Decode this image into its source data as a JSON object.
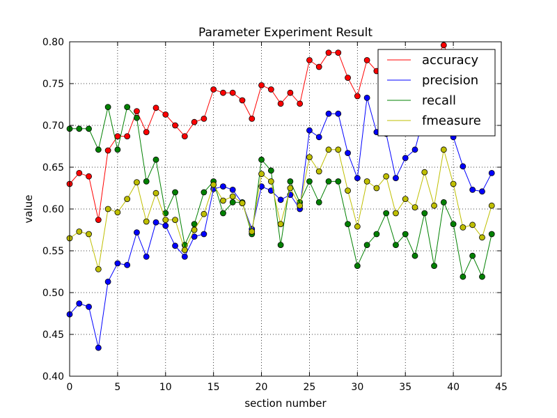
{
  "chart_data": {
    "type": "line",
    "title": "Parameter Experiment Result",
    "xlabel": "section number",
    "ylabel": "value",
    "xlim": [
      0,
      45
    ],
    "ylim": [
      0.4,
      0.8
    ],
    "xticks": [
      0,
      5,
      10,
      15,
      20,
      25,
      30,
      35,
      40,
      45
    ],
    "xtick_labels": [
      "0",
      "5",
      "10",
      "15",
      "20",
      "25",
      "30",
      "35",
      "40",
      "45"
    ],
    "yticks": [
      0.4,
      0.45,
      0.5,
      0.55,
      0.6,
      0.65,
      0.7,
      0.75,
      0.8
    ],
    "ytick_labels": [
      "0.40",
      "0.45",
      "0.50",
      "0.55",
      "0.60",
      "0.65",
      "0.70",
      "0.75",
      "0.80"
    ],
    "grid": true,
    "legend_position": "top-right",
    "x": [
      0,
      1,
      2,
      3,
      4,
      5,
      6,
      7,
      8,
      9,
      10,
      11,
      12,
      13,
      14,
      15,
      16,
      17,
      18,
      19,
      20,
      21,
      22,
      23,
      24,
      25,
      26,
      27,
      28,
      29,
      30,
      31,
      32,
      33,
      34,
      35,
      36,
      37,
      38,
      39,
      40,
      41,
      42,
      43,
      44
    ],
    "series": [
      {
        "name": "accuracy",
        "color": "#ff0000",
        "values": [
          0.63,
          0.643,
          0.639,
          0.587,
          0.67,
          0.687,
          0.687,
          0.717,
          0.692,
          0.721,
          0.713,
          0.7,
          0.687,
          0.704,
          0.708,
          0.743,
          0.739,
          0.739,
          0.73,
          0.708,
          0.748,
          0.743,
          0.726,
          0.739,
          0.726,
          0.778,
          0.77,
          0.787,
          0.787,
          0.757,
          0.735,
          0.778,
          0.765,
          0.765,
          0.77,
          0.757,
          0.761,
          0.77,
          0.778,
          0.796,
          0.77,
          0.761,
          0.748,
          0.735,
          0.761
        ]
      },
      {
        "name": "precision",
        "color": "#0000ff",
        "values": [
          0.474,
          0.487,
          0.483,
          0.434,
          0.513,
          0.535,
          0.533,
          0.572,
          0.543,
          0.584,
          0.58,
          0.556,
          0.543,
          0.567,
          0.57,
          0.624,
          0.627,
          0.623,
          0.607,
          0.576,
          0.627,
          0.622,
          0.611,
          0.617,
          0.6,
          0.694,
          0.686,
          0.714,
          0.714,
          0.667,
          0.637,
          0.733,
          0.692,
          0.69,
          0.637,
          0.661,
          0.671,
          0.714,
          0.737,
          0.735,
          0.686,
          0.651,
          0.623,
          0.621,
          0.643
        ]
      },
      {
        "name": "recall",
        "color": "#008000",
        "values": [
          0.696,
          0.696,
          0.696,
          0.671,
          0.722,
          0.671,
          0.722,
          0.709,
          0.633,
          0.659,
          0.595,
          0.62,
          0.557,
          0.582,
          0.62,
          0.633,
          0.595,
          0.608,
          0.608,
          0.57,
          0.659,
          0.646,
          0.557,
          0.633,
          0.608,
          0.633,
          0.608,
          0.633,
          0.633,
          0.582,
          0.532,
          0.557,
          0.57,
          0.595,
          0.557,
          0.57,
          0.544,
          0.595,
          0.532,
          0.608,
          0.582,
          0.519,
          0.544,
          0.519,
          0.57
        ]
      },
      {
        "name": "fmeasure",
        "color": "#bfbf00",
        "values": [
          0.565,
          0.573,
          0.57,
          0.528,
          0.6,
          0.596,
          0.612,
          0.632,
          0.585,
          0.619,
          0.587,
          0.587,
          0.551,
          0.575,
          0.594,
          0.629,
          0.61,
          0.615,
          0.607,
          0.573,
          0.642,
          0.633,
          0.582,
          0.625,
          0.604,
          0.662,
          0.645,
          0.671,
          0.671,
          0.622,
          0.579,
          0.633,
          0.625,
          0.639,
          0.595,
          0.612,
          0.602,
          0.644,
          0.604,
          0.671,
          0.63,
          0.578,
          0.581,
          0.566,
          0.604
        ]
      }
    ]
  }
}
